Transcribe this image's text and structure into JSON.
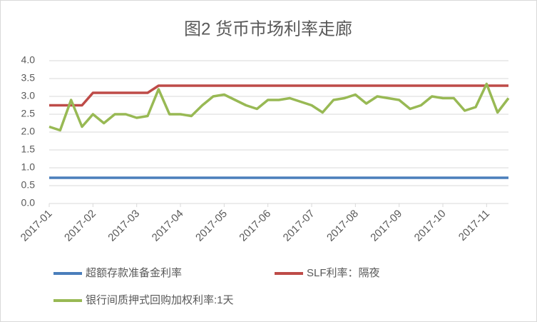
{
  "chart_data": {
    "type": "line",
    "title": "图2 货币市场利率走廊",
    "categories": [
      "2017-01",
      null,
      null,
      null,
      "2017-02",
      null,
      null,
      null,
      "2017-03",
      null,
      null,
      null,
      "2017-04",
      null,
      null,
      null,
      "2017-05",
      null,
      null,
      null,
      "2017-06",
      null,
      null,
      null,
      "2017-07",
      null,
      null,
      null,
      "2017-08",
      null,
      null,
      null,
      "2017-09",
      null,
      null,
      null,
      "2017-10",
      null,
      null,
      null,
      "2017-11",
      null,
      null
    ],
    "series": [
      {
        "name": "超额存款准备金利率",
        "color": "#4a7ebb",
        "values": [
          0.72,
          0.72,
          0.72,
          0.72,
          0.72,
          0.72,
          0.72,
          0.72,
          0.72,
          0.72,
          0.72,
          0.72,
          0.72,
          0.72,
          0.72,
          0.72,
          0.72,
          0.72,
          0.72,
          0.72,
          0.72,
          0.72,
          0.72,
          0.72,
          0.72,
          0.72,
          0.72,
          0.72,
          0.72,
          0.72,
          0.72,
          0.72,
          0.72,
          0.72,
          0.72,
          0.72,
          0.72,
          0.72,
          0.72,
          0.72,
          0.72,
          0.72,
          0.72
        ]
      },
      {
        "name": "SLF利率：隔夜",
        "color": "#be4b48",
        "values": [
          2.75,
          2.75,
          2.75,
          2.75,
          3.1,
          3.1,
          3.1,
          3.1,
          3.1,
          3.1,
          3.3,
          3.3,
          3.3,
          3.3,
          3.3,
          3.3,
          3.3,
          3.3,
          3.3,
          3.3,
          3.3,
          3.3,
          3.3,
          3.3,
          3.3,
          3.3,
          3.3,
          3.3,
          3.3,
          3.3,
          3.3,
          3.3,
          3.3,
          3.3,
          3.3,
          3.3,
          3.3,
          3.3,
          3.3,
          3.3,
          3.3,
          3.3,
          3.3
        ]
      },
      {
        "name": "银行间质押式回购加权利率:1天",
        "color": "#98b954",
        "values": [
          2.15,
          2.05,
          2.9,
          2.15,
          2.5,
          2.25,
          2.5,
          2.5,
          2.4,
          2.45,
          3.2,
          2.5,
          2.5,
          2.45,
          2.75,
          3.0,
          3.05,
          2.9,
          2.75,
          2.65,
          2.9,
          2.9,
          2.95,
          2.85,
          2.75,
          2.55,
          2.9,
          2.95,
          3.05,
          2.8,
          3.0,
          2.95,
          2.9,
          2.65,
          2.75,
          3.0,
          2.95,
          2.95,
          2.6,
          2.7,
          3.35,
          2.55,
          2.95
        ]
      }
    ],
    "ylim": [
      0,
      4
    ],
    "yticks": [
      {
        "value": 0,
        "label": "0.0"
      },
      {
        "value": 0.5,
        "label": "0.5"
      },
      {
        "value": 1,
        "label": "1.0"
      },
      {
        "value": 1.5,
        "label": "1.5"
      },
      {
        "value": 2,
        "label": "2.0"
      },
      {
        "value": 2.5,
        "label": "2.5"
      },
      {
        "value": 3,
        "label": "3.0"
      },
      {
        "value": 3.5,
        "label": "3.5"
      },
      {
        "value": 4,
        "label": "4.0"
      }
    ],
    "grid": true
  }
}
